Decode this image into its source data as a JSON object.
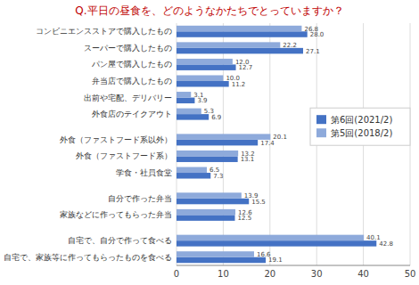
{
  "chart_data": {
    "type": "bar",
    "orientation": "horizontal",
    "title": "Q.平日の昼食を、どのようなかたちでとっていますか？",
    "categories": [
      "コンビニエンスストアで購入したもの",
      "スーパーで購入したもの",
      "パン屋で購入したもの",
      "弁当店で購入したもの",
      "出前や宅配、デリバリー",
      "外食店のテイクアウト",
      null,
      "外食（ファストフード系以外）",
      "外食（ファストフード系）",
      "学食・社員食堂",
      null,
      "自分で作った弁当",
      "家族などに作ってもらった弁当",
      null,
      "自宅で、自分で作って食べる",
      "自宅で、家族等に作ってもらったものを食べる"
    ],
    "series": [
      {
        "name": "第6回(2021/2)",
        "color": "#4472C4",
        "values": [
          28.0,
          27.1,
          12.7,
          11.2,
          3.9,
          6.9,
          null,
          17.4,
          13.1,
          7.3,
          null,
          15.5,
          12.5,
          null,
          42.8,
          19.1
        ],
        "value_labels": [
          "28.0",
          "27.1",
          "12.7",
          "11.2",
          "3.9",
          "6.9",
          null,
          "17.4",
          "13.1",
          "7.3",
          null,
          "15.5",
          "12.5",
          null,
          "42.8",
          "19.1"
        ]
      },
      {
        "name": "第5回(2018/2)",
        "color": "#8EAADB",
        "values": [
          26.8,
          22.2,
          12.0,
          10.0,
          3.1,
          5.3,
          null,
          20.1,
          13.2,
          6.5,
          null,
          13.9,
          12.6,
          null,
          40.1,
          16.6
        ],
        "value_labels": [
          "26.8",
          "22.2",
          "12.0",
          "10.0",
          "3.1",
          "5.3",
          null,
          "20.1",
          "13.2",
          "6.5",
          null,
          "13.9",
          "12.6",
          null,
          "40.1",
          "16.6"
        ]
      }
    ],
    "xlim": [
      0,
      50
    ],
    "xticks": [
      0,
      10,
      20,
      30,
      40,
      50
    ],
    "grid": true,
    "legend": "right",
    "data_labels": true
  }
}
